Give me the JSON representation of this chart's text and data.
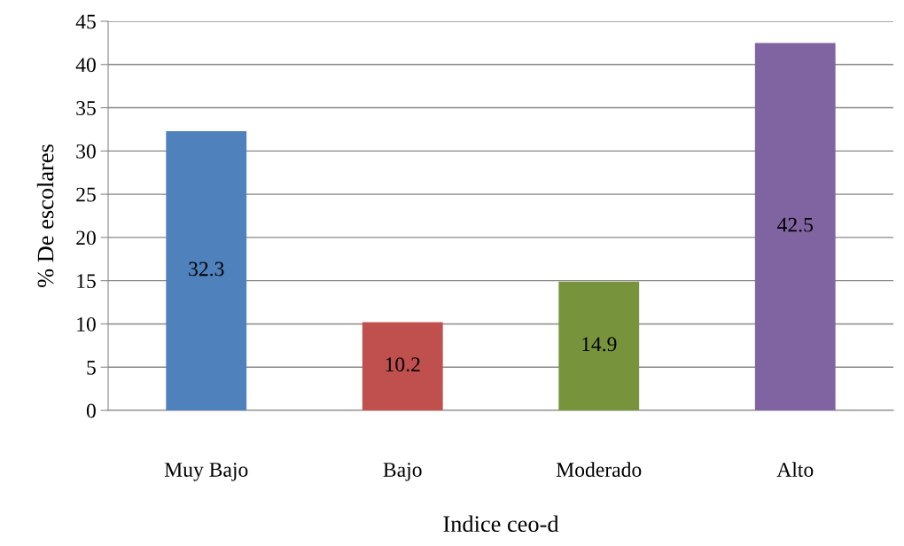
{
  "chart_data": {
    "type": "bar",
    "xlabel": "Indice ceo-d",
    "ylabel": "% De escolares",
    "categories": [
      "Muy Bajo",
      "Bajo",
      "Moderado",
      "Alto"
    ],
    "values": [
      32.3,
      10.2,
      14.9,
      42.5
    ],
    "colors": [
      "#4f81bd",
      "#c0504d",
      "#77933c",
      "#8064a2"
    ],
    "ylim": [
      0,
      45
    ],
    "yticks": [
      0,
      5,
      10,
      15,
      20,
      25,
      30,
      35,
      40,
      45
    ],
    "grid": "y",
    "data_labels": true,
    "legend": false
  }
}
